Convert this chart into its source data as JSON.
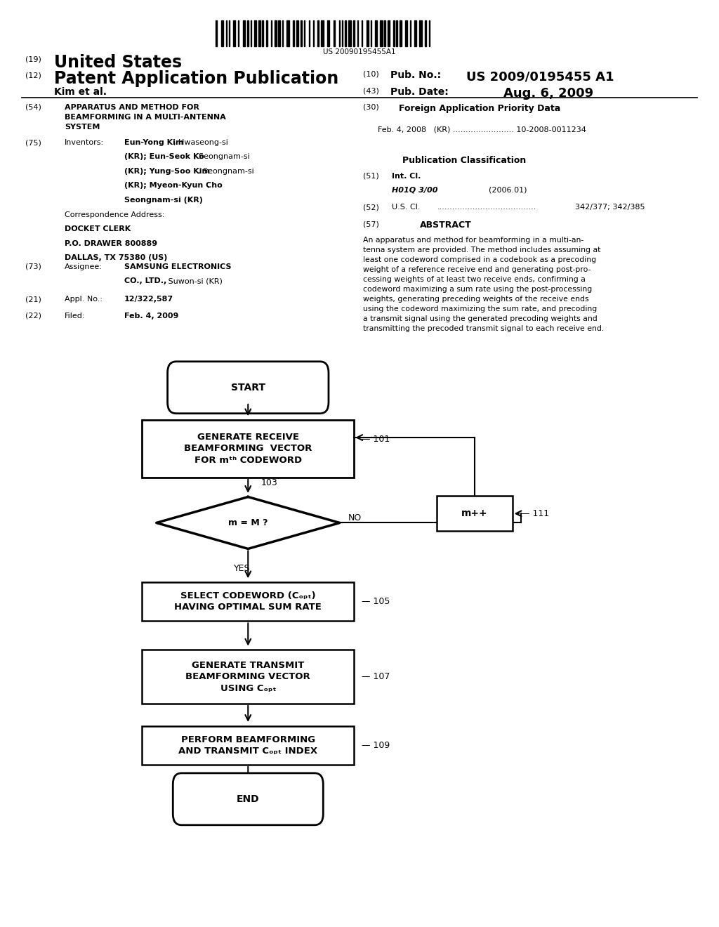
{
  "background_color": "#ffffff",
  "barcode_text": "US 20090195455A1",
  "header": {
    "number19": "(19)",
    "united_states": "United States",
    "number12": "(12)",
    "patent_app_pub": "Patent Application Publication",
    "number10": "(10)",
    "pub_no_label": "Pub. No.:",
    "pub_no_value": "US 2009/0195455 A1",
    "kim_et_al": "Kim et al.",
    "number43": "(43)",
    "pub_date_label": "Pub. Date:",
    "pub_date_value": "Aug. 6, 2009"
  },
  "left_col": {
    "num54": "(54)",
    "title_label": "APPARATUS AND METHOD FOR\nBEAMFORMING IN A MULTI-ANTENNA\nSYSTEM",
    "num75": "(75)",
    "inventors_label": "Inventors:",
    "num73": "(73)",
    "assignee_label": "Assignee:",
    "num21": "(21)",
    "appl_no_label": "Appl. No.:",
    "appl_no_value": "12/322,587",
    "num22": "(22)",
    "filed_label": "Filed:",
    "filed_value": "Feb. 4, 2009"
  },
  "right_col": {
    "num30": "(30)",
    "foreign_priority_title": "Foreign Application Priority Data",
    "foreign_priority_text": "Feb. 4, 2008   (KR) ........................ 10-2008-0011234",
    "pub_class_title": "Publication Classification",
    "num51": "(51)",
    "int_cl_label": "Int. Cl.",
    "int_cl_value": "H01Q 3/00",
    "int_cl_year": "(2006.01)",
    "num52": "(52)",
    "us_cl_label": "U.S. Cl.",
    "us_cl_dots": ".......................................",
    "us_cl_value": "342/377; 342/385",
    "num57": "(57)",
    "abstract_title": "ABSTRACT",
    "abstract_text": "An apparatus and method for beamforming in a multi-an-\ntenna system are provided. The method includes assuming at\nleast one codeword comprised in a codebook as a precoding\nweight of a reference receive end and generating post-pro-\ncessing weights of at least two receive ends, confirming a\ncodeword maximizing a sum rate using the post-processing\nweights, generating preceding weights of the receive ends\nusing the codeword maximizing the sum rate, and precoding\na transmit signal using the generated precoding weights and\ntransmitting the precoded transmit signal to each receive end."
  }
}
